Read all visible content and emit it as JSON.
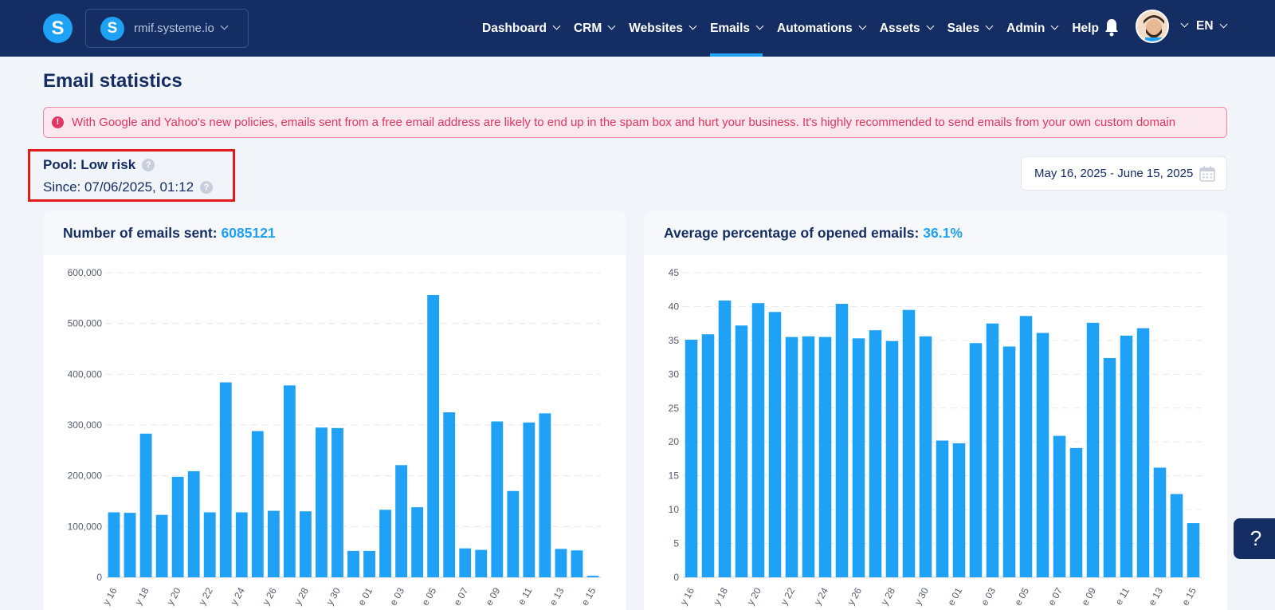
{
  "app": {
    "logo_letter": "S"
  },
  "workspace": {
    "icon_letter": "S",
    "name": "rmif.systeme.io"
  },
  "nav": {
    "items": [
      {
        "label": "Dashboard",
        "dropdown": true,
        "active": false
      },
      {
        "label": "CRM",
        "dropdown": true,
        "active": false
      },
      {
        "label": "Websites",
        "dropdown": true,
        "active": false
      },
      {
        "label": "Emails",
        "dropdown": true,
        "active": true
      },
      {
        "label": "Automations",
        "dropdown": true,
        "active": false
      },
      {
        "label": "Assets",
        "dropdown": true,
        "active": false
      },
      {
        "label": "Sales",
        "dropdown": true,
        "active": false
      },
      {
        "label": "Admin",
        "dropdown": true,
        "active": false
      },
      {
        "label": "Help",
        "dropdown": false,
        "active": false
      }
    ],
    "language": "EN"
  },
  "page": {
    "title": "Email statistics",
    "alert": "With Google and Yahoo's new policies, emails sent from a free email address are likely to end up in the spam box and hurt your business. It's highly recommended to send emails from your own custom domain",
    "pool_label": "Pool: Low risk",
    "since_label": "Since: 07/06/2025, 01:12",
    "date_range": "May 16, 2025 - June 15, 2025"
  },
  "colors": {
    "navy": "#142d63",
    "accent": "#1fa1f5",
    "alert": "#e3355f"
  },
  "chart_data": [
    {
      "type": "bar",
      "title": "Number of emails sent:",
      "total": "6085121",
      "x_tick_labels": [
        "y 16",
        "y 18",
        "y 20",
        "y 22",
        "y 24",
        "y 26",
        "y 28",
        "y 30",
        "e 01",
        "e 03",
        "e 05",
        "e 07",
        "e 09",
        "e 11",
        "e 13",
        "e 15"
      ],
      "y_ticks": [
        "0",
        "100,000",
        "200,000",
        "300,000",
        "400,000",
        "500,000",
        "600,000"
      ],
      "ylim": [
        0,
        600000
      ],
      "grid": true,
      "values": [
        128000,
        127000,
        283000,
        123000,
        198000,
        209000,
        128000,
        384000,
        128000,
        288000,
        131000,
        378000,
        130000,
        295000,
        294000,
        52000,
        52000,
        133000,
        221000,
        138000,
        556000,
        325000,
        57000,
        54000,
        307000,
        170000,
        305000,
        323000,
        56000,
        53000,
        3000
      ]
    },
    {
      "type": "bar",
      "title": "Average percentage of opened emails:",
      "total": "36.1%",
      "x_tick_labels": [
        "y 16",
        "y 18",
        "y 20",
        "y 22",
        "y 24",
        "y 26",
        "y 28",
        "y 30",
        "e 01",
        "e 03",
        "e 05",
        "e 07",
        "e 09",
        "e 11",
        "e 13",
        "e 15"
      ],
      "y_ticks": [
        "0",
        "5",
        "10",
        "15",
        "20",
        "25",
        "30",
        "35",
        "40",
        "45"
      ],
      "ylim": [
        0,
        45
      ],
      "grid": true,
      "values": [
        35.1,
        35.9,
        40.9,
        37.2,
        40.5,
        39.2,
        35.5,
        35.6,
        35.5,
        40.4,
        35.3,
        36.5,
        34.9,
        39.5,
        35.6,
        20.2,
        19.8,
        34.6,
        37.5,
        34.1,
        38.6,
        36.1,
        20.9,
        19.1,
        37.6,
        32.4,
        35.7,
        36.8,
        16.2,
        12.3,
        8.0
      ]
    }
  ]
}
